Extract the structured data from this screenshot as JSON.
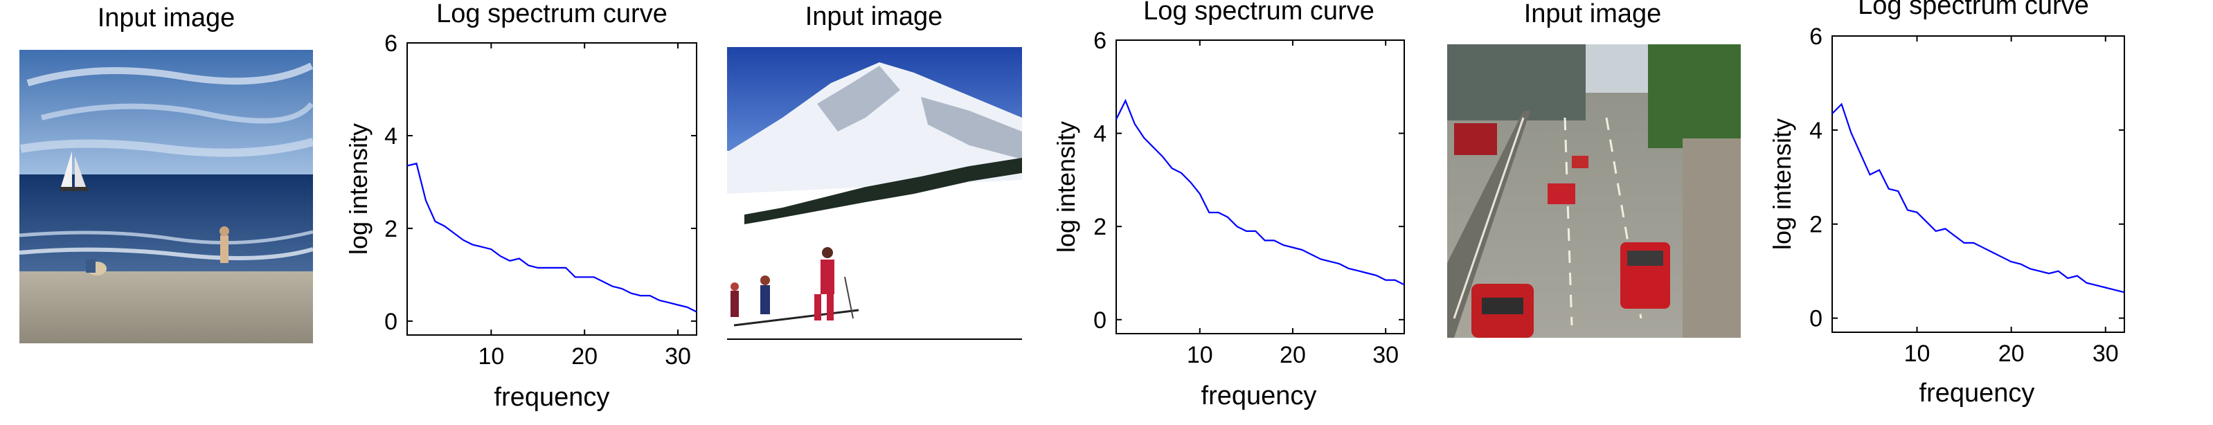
{
  "panels": [
    {
      "title": "Input image",
      "scene": "beach-sailboat-scene"
    },
    {
      "title": "Input image",
      "scene": "snowy-mountain-skiers-scene"
    },
    {
      "title": "Input image",
      "scene": "city-street-traffic-scene"
    }
  ],
  "chart_data": [
    {
      "type": "line",
      "title": "Log spectrum curve",
      "xlabel": "frequency",
      "ylabel": "log intensity",
      "xlim": [
        1,
        32
      ],
      "ylim": [
        -0.3,
        6
      ],
      "xticks": [
        10,
        20,
        30
      ],
      "yticks": [
        0,
        2,
        4,
        6
      ],
      "grid": false,
      "series": [
        {
          "color": "#0000ff",
          "x": [
            1,
            2,
            3,
            4,
            5,
            6,
            7,
            8,
            9,
            10,
            11,
            12,
            13,
            14,
            15,
            16,
            17,
            18,
            19,
            20,
            21,
            22,
            23,
            24,
            25,
            26,
            27,
            28,
            29,
            30,
            31,
            32
          ],
          "y": [
            3.35,
            3.4,
            2.6,
            2.15,
            2.05,
            1.9,
            1.75,
            1.65,
            1.6,
            1.55,
            1.4,
            1.3,
            1.35,
            1.2,
            1.15,
            1.15,
            1.15,
            1.15,
            0.95,
            0.95,
            0.95,
            0.85,
            0.75,
            0.7,
            0.6,
            0.55,
            0.55,
            0.45,
            0.4,
            0.35,
            0.3,
            0.2
          ]
        }
      ]
    },
    {
      "type": "line",
      "title": "Log spectrum curve",
      "xlabel": "frequency",
      "ylabel": "log intensity",
      "xlim": [
        1,
        32
      ],
      "ylim": [
        -0.3,
        6
      ],
      "xticks": [
        10,
        20,
        30
      ],
      "yticks": [
        0,
        2,
        4,
        6
      ],
      "grid": false,
      "series": [
        {
          "color": "#0000ff",
          "x": [
            1,
            2,
            3,
            4,
            5,
            6,
            7,
            8,
            9,
            10,
            11,
            12,
            13,
            14,
            15,
            16,
            17,
            18,
            19,
            20,
            21,
            22,
            23,
            24,
            25,
            26,
            27,
            28,
            29,
            30,
            31,
            32
          ],
          "y": [
            4.3,
            4.7,
            4.2,
            3.9,
            3.7,
            3.5,
            3.25,
            3.15,
            2.95,
            2.7,
            2.3,
            2.3,
            2.2,
            2.0,
            1.9,
            1.9,
            1.7,
            1.7,
            1.6,
            1.55,
            1.5,
            1.4,
            1.3,
            1.25,
            1.2,
            1.1,
            1.05,
            1.0,
            0.95,
            0.85,
            0.85,
            0.75
          ]
        }
      ]
    },
    {
      "type": "line",
      "title": "Log spectrum curve",
      "xlabel": "frequency",
      "ylabel": "log intensity",
      "xlim": [
        1,
        32
      ],
      "ylim": [
        -0.3,
        6
      ],
      "xticks": [
        10,
        20,
        30
      ],
      "yticks": [
        0,
        2,
        4,
        6
      ],
      "grid": false,
      "series": [
        {
          "color": "#0000ff",
          "x": [
            1,
            2,
            3,
            4,
            5,
            6,
            7,
            8,
            9,
            10,
            11,
            12,
            13,
            14,
            15,
            16,
            17,
            18,
            19,
            20,
            21,
            22,
            23,
            24,
            25,
            26,
            27,
            28,
            29,
            30,
            31,
            32
          ],
          "y": [
            4.35,
            4.55,
            3.95,
            3.5,
            3.05,
            3.15,
            2.75,
            2.7,
            2.3,
            2.25,
            2.05,
            1.85,
            1.9,
            1.75,
            1.6,
            1.6,
            1.5,
            1.4,
            1.3,
            1.2,
            1.15,
            1.05,
            1.0,
            0.95,
            1.0,
            0.85,
            0.9,
            0.75,
            0.7,
            0.65,
            0.6,
            0.55
          ]
        }
      ]
    }
  ]
}
